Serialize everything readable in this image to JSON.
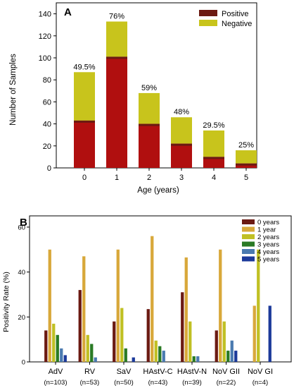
{
  "chart_data": [
    {
      "panel": "A",
      "type": "bar",
      "stacked": true,
      "categories": [
        "0",
        "1",
        "2",
        "3",
        "4",
        "5"
      ],
      "series": [
        {
          "name": "Positive",
          "values": [
            43,
            101,
            40,
            22,
            10,
            4
          ]
        },
        {
          "name": "Negative",
          "values": [
            44,
            32,
            28,
            24,
            24,
            12
          ]
        }
      ],
      "bar_labels": [
        "49.5%",
        "76%",
        "59%",
        "48%",
        "29.5%",
        "25%"
      ],
      "xlabel": "Age (years)",
      "ylabel": "Number of Samples",
      "ylim": [
        0,
        150
      ],
      "yticks": [
        0,
        20,
        40,
        60,
        80,
        100,
        120,
        140
      ],
      "legend": "top-right",
      "colors": {
        "Positive": "#6b1a12",
        "Negative": "#c8c41c",
        "positive_fill": "#b00f0f"
      }
    },
    {
      "panel": "B",
      "type": "bar",
      "categories": [
        "AdV",
        "RV",
        "SaV",
        "HAstV-C",
        "HAstV-N",
        "NoV GII",
        "NoV GI"
      ],
      "category_counts": [
        "(n=103)",
        "(n=53)",
        "(n=50)",
        "(n=43)",
        "(n=39)",
        "(n=22)",
        "(n=4)"
      ],
      "series": [
        {
          "name": "0 years",
          "values": [
            14,
            32,
            18,
            23.5,
            31,
            14,
            0
          ]
        },
        {
          "name": "1 year",
          "values": [
            50,
            47,
            50,
            56,
            46.5,
            50,
            25
          ]
        },
        {
          "name": "2 years",
          "values": [
            17,
            12,
            24,
            9.5,
            18,
            18,
            50
          ]
        },
        {
          "name": "3 years",
          "values": [
            12,
            8,
            6,
            7,
            2.5,
            5,
            0
          ]
        },
        {
          "name": "4 years",
          "values": [
            6,
            2,
            0,
            5,
            2.5,
            9.5,
            0
          ]
        },
        {
          "name": "5 years",
          "values": [
            3,
            0,
            2,
            0,
            0,
            5,
            25
          ]
        }
      ],
      "ylabel": "Positivity Rate (%)",
      "ylim": [
        0,
        65
      ],
      "yticks": [
        0,
        20,
        40,
        60
      ],
      "legend": "top-right",
      "colors": [
        "#6b1a12",
        "#d8a83a",
        "#c0c024",
        "#2a7a24",
        "#4a7ab0",
        "#1c3a9a"
      ]
    }
  ]
}
